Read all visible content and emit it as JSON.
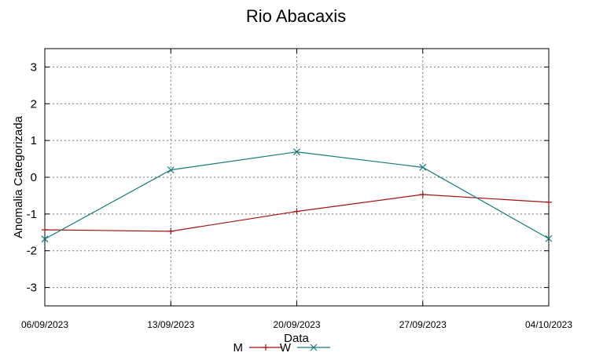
{
  "chart_data": {
    "type": "line",
    "title": "Rio Abacaxis",
    "xlabel": "Data",
    "ylabel": "Anomalia Categorizada",
    "x": [
      "06/09/2023",
      "13/09/2023",
      "20/09/2023",
      "27/09/2023",
      "04/10/2023"
    ],
    "ylim": [
      -3.5,
      3.5
    ],
    "yticks": [
      -3,
      -2,
      -1,
      0,
      1,
      2,
      3
    ],
    "grid": true,
    "legend_position": "bottom",
    "series": [
      {
        "name": "M",
        "values": [
          -1.43,
          -1.47,
          -0.93,
          -0.47,
          -0.68
        ],
        "color": "#a01010",
        "marker": "plus"
      },
      {
        "name": "W",
        "values": [
          -1.68,
          0.2,
          0.69,
          0.27,
          -1.67
        ],
        "color": "#157a7a",
        "marker": "cross"
      }
    ]
  }
}
